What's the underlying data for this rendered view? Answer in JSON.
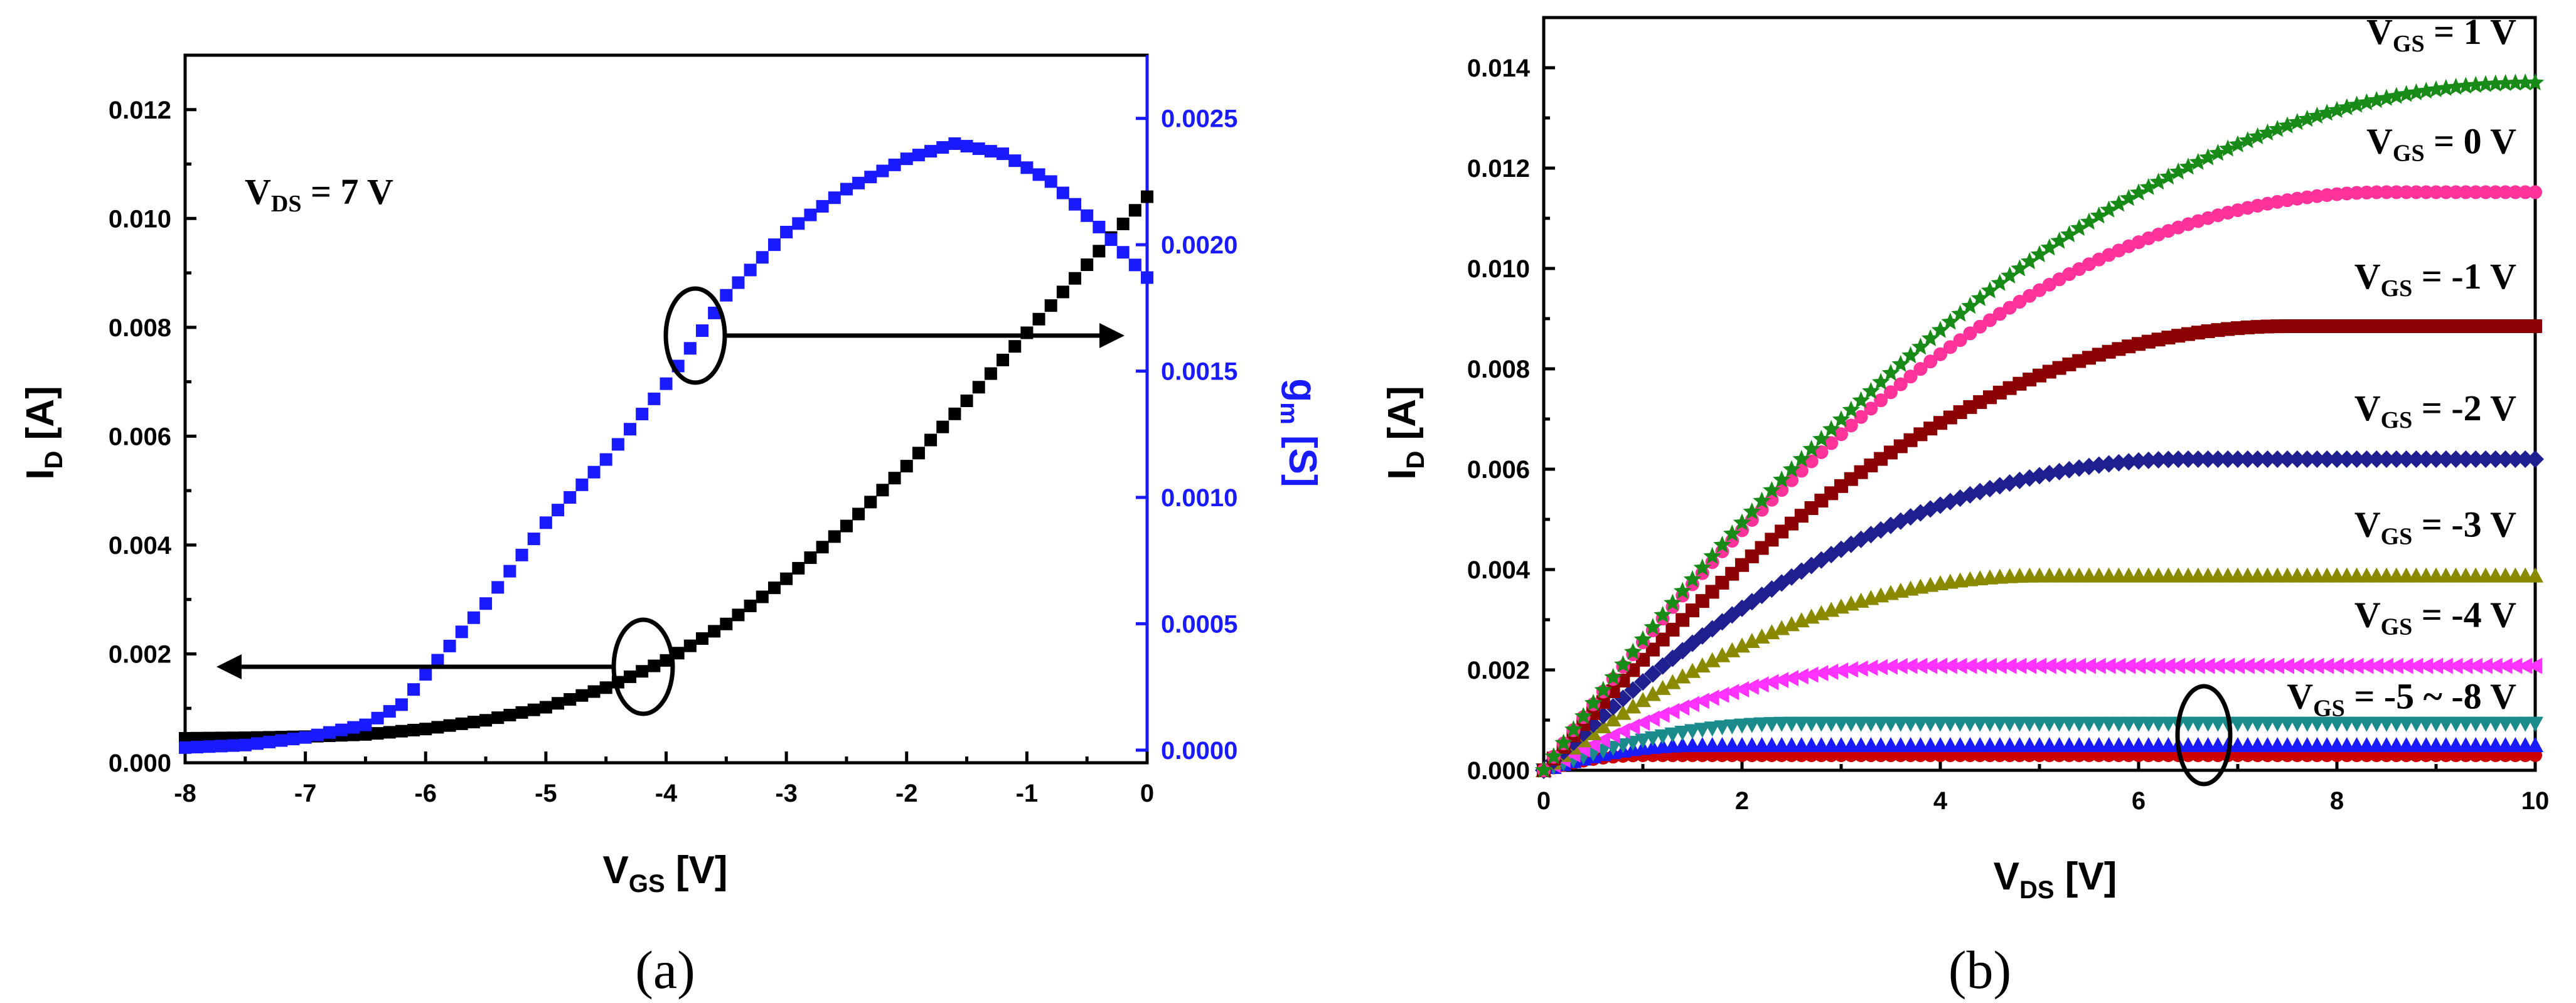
{
  "chart_data": [
    {
      "type": "scatter",
      "panel_label": "(a)",
      "x_range": [
        -8,
        0
      ],
      "y_range": [
        0,
        0.013
      ],
      "y2_range": [
        -5e-05,
        0.00275
      ],
      "xlabel": {
        "main": "V",
        "sub": "GS",
        "unit": " [V]"
      },
      "ylabel": {
        "main": "I",
        "sub": "D",
        "unit": " [A]"
      },
      "y2label": {
        "main": "g",
        "sub": "m",
        "unit": " [S]"
      },
      "x_ticks": [
        "-8",
        "-7",
        "-6",
        "-5",
        "-4",
        "-3",
        "-2",
        "-1",
        "0"
      ],
      "y_ticks": [
        "0.000",
        "0.002",
        "0.004",
        "0.006",
        "0.008",
        "0.010",
        "0.012"
      ],
      "y2_ticks": [
        "0.0000",
        "0.0005",
        "0.0010",
        "0.0015",
        "0.0020",
        "0.0025"
      ],
      "annotation": {
        "main": "V",
        "sub": "DS",
        "rest": " = 7 V"
      },
      "series": [
        {
          "axis": "left",
          "color": "#000000",
          "marker": "square",
          "points": [
            [
              -8.0,
              0.00045
            ],
            [
              -7.5,
              0.00046
            ],
            [
              -7.0,
              0.00048
            ],
            [
              -6.5,
              0.00052
            ],
            [
              -6.0,
              0.00062
            ],
            [
              -5.5,
              0.00078
            ],
            [
              -5.0,
              0.00102
            ],
            [
              -4.5,
              0.00138
            ],
            [
              -4.0,
              0.00188
            ],
            [
              -3.5,
              0.00255
            ],
            [
              -3.0,
              0.00338
            ],
            [
              -2.5,
              0.00435
            ],
            [
              -2.0,
              0.00545
            ],
            [
              -1.5,
              0.00665
            ],
            [
              -1.0,
              0.0079
            ],
            [
              -0.5,
              0.00915
            ],
            [
              0.0,
              0.0104
            ]
          ]
        },
        {
          "axis": "right",
          "color": "#1a1aff",
          "marker": "square",
          "points": [
            [
              -8.0,
              1e-05
            ],
            [
              -7.5,
              2e-05
            ],
            [
              -7.0,
              5e-05
            ],
            [
              -6.5,
              0.0001
            ],
            [
              -6.2,
              0.00018
            ],
            [
              -6.0,
              0.0003
            ],
            [
              -5.5,
              0.00058
            ],
            [
              -5.0,
              0.0009
            ],
            [
              -4.5,
              0.00115
            ],
            [
              -4.0,
              0.00145
            ],
            [
              -3.5,
              0.0018
            ],
            [
              -3.0,
              0.00205
            ],
            [
              -2.5,
              0.00222
            ],
            [
              -2.0,
              0.00234
            ],
            [
              -1.6,
              0.0024
            ],
            [
              -1.2,
              0.00236
            ],
            [
              -0.8,
              0.00225
            ],
            [
              -0.4,
              0.00207
            ],
            [
              0.0,
              0.00187
            ]
          ]
        }
      ]
    },
    {
      "type": "scatter",
      "panel_label": "(b)",
      "x_range": [
        0,
        10
      ],
      "y_range": [
        0,
        0.015
      ],
      "xlabel": {
        "main": "V",
        "sub": "DS",
        "unit": " [V]"
      },
      "ylabel": {
        "main": "I",
        "sub": "D",
        "unit": " [A]"
      },
      "x_ticks": [
        "0",
        "2",
        "4",
        "6",
        "8",
        "10"
      ],
      "y_ticks": [
        "0.000",
        "0.002",
        "0.004",
        "0.006",
        "0.008",
        "0.010",
        "0.012",
        "0.014"
      ],
      "series": [
        {
          "name": "V_GS = 1 V",
          "label": {
            "main": "V",
            "sub": "GS",
            "rest": " = 1 V"
          },
          "color": "#178a17",
          "marker": "star",
          "isat": 0.0137,
          "vsat": 10.0
        },
        {
          "name": "V_GS = 0 V",
          "label": {
            "main": "V",
            "sub": "GS",
            "rest": " = 0 V"
          },
          "color": "#ff3399",
          "marker": "circle",
          "isat": 0.01152,
          "vsat": 8.5
        },
        {
          "name": "V_GS = -1 V",
          "label": {
            "main": "V",
            "sub": "GS",
            "rest": " = -1 V"
          },
          "color": "#8b0000",
          "marker": "square",
          "isat": 0.00885,
          "vsat": 7.5
        },
        {
          "name": "V_GS = -2 V",
          "label": {
            "main": "V",
            "sub": "GS",
            "rest": " = -2 V"
          },
          "color": "#1f1f8f",
          "marker": "diamond",
          "isat": 0.0062,
          "vsat": 6.5
        },
        {
          "name": "V_GS = -3 V",
          "label": {
            "main": "V",
            "sub": "GS",
            "rest": " = -3 V"
          },
          "color": "#8a8a00",
          "marker": "triangle",
          "isat": 0.00388,
          "vsat": 5.0
        },
        {
          "name": "V_GS = -4 V",
          "label": {
            "main": "V",
            "sub": "GS",
            "rest": " = -4 V"
          },
          "color": "#ff33ff",
          "marker": "triangle-left",
          "isat": 0.00208,
          "vsat": 3.8
        },
        {
          "name": "V_GS = -5 ~ -8 V",
          "label": {
            "main": "V",
            "sub": "GS",
            "rest": " = -5 ~ -8 V"
          },
          "color": "#1a8a8a",
          "marker": "triangle-down",
          "isat": 0.00093,
          "vsat": 2.5
        },
        {
          "name": "",
          "color": "#1a1aff",
          "marker": "triangle",
          "isat": 0.0005,
          "vsat": 1.5
        },
        {
          "name": "",
          "color": "#cc0000",
          "marker": "circle",
          "isat": 0.0003,
          "vsat": 1.0
        }
      ]
    }
  ]
}
